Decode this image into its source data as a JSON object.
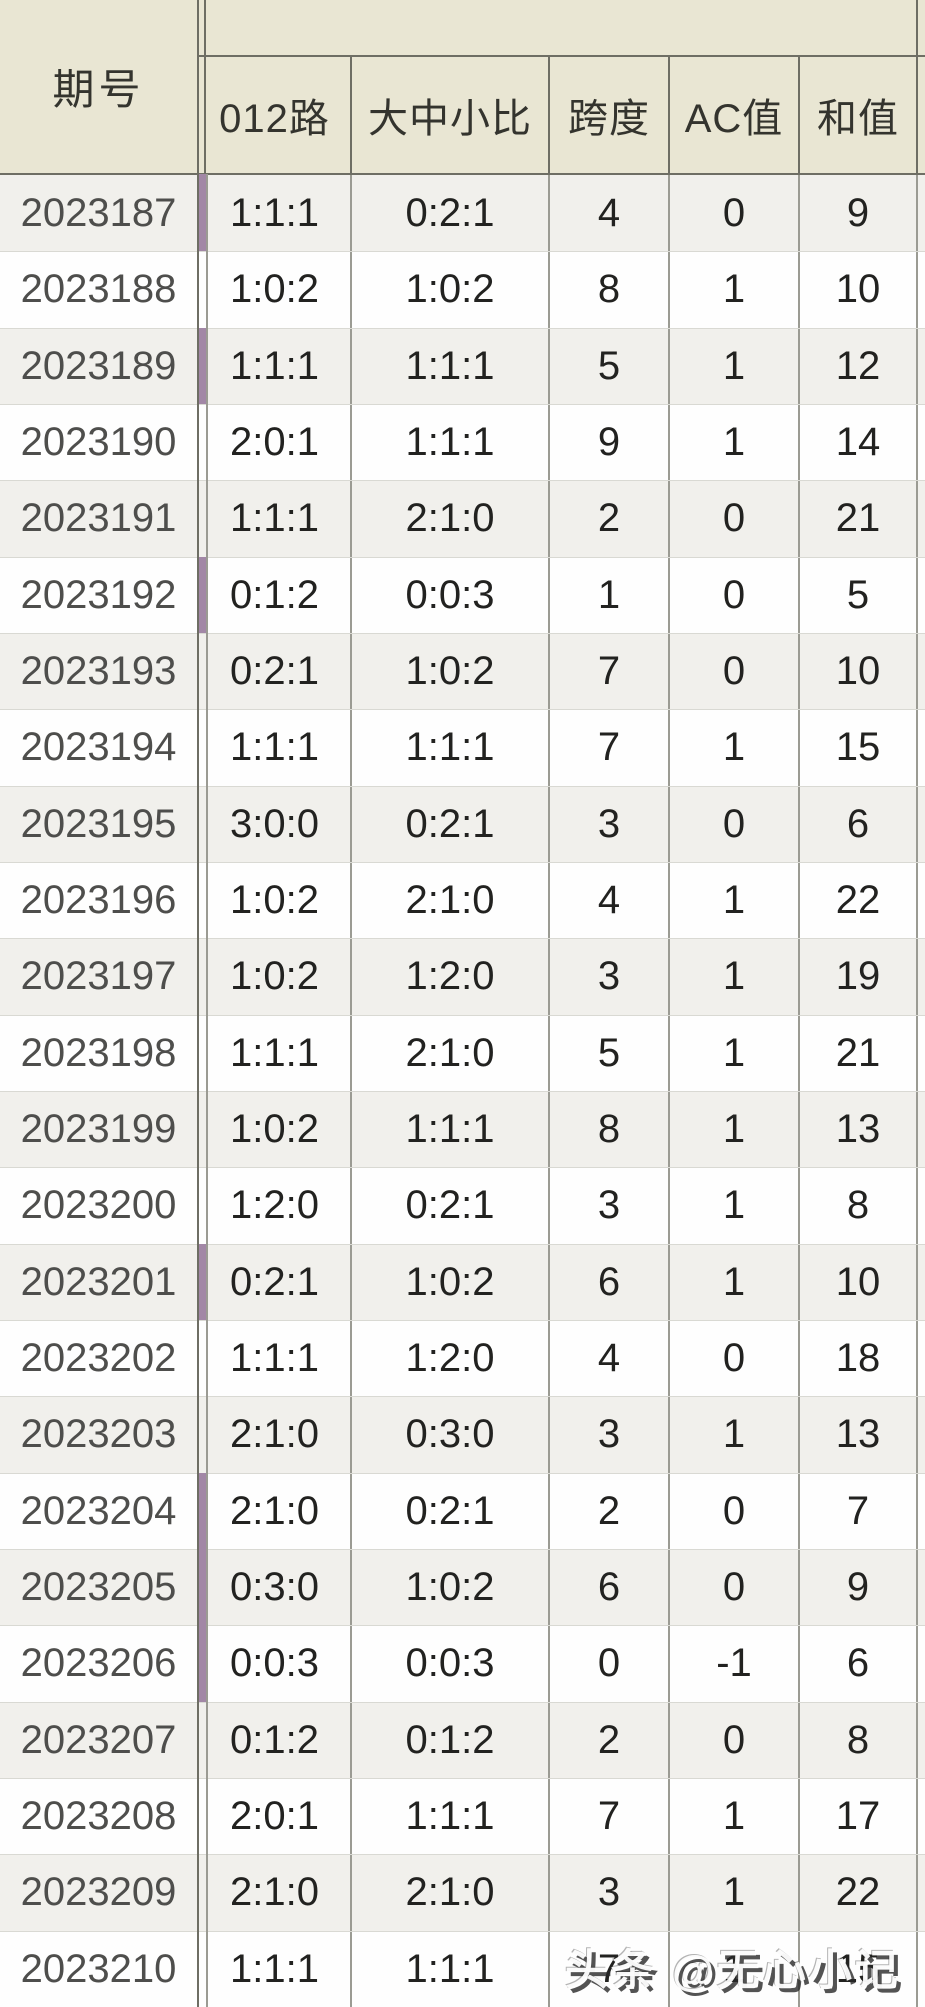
{
  "table": {
    "period_label": "期号",
    "columns": [
      "012路",
      "大中小比",
      "跨度",
      "AC值",
      "和值"
    ],
    "rows": [
      {
        "period": "2023187",
        "road012": "1:1:1",
        "size_ratio": "0:2:1",
        "span": "4",
        "ac": "0",
        "sum": "9",
        "marked": true
      },
      {
        "period": "2023188",
        "road012": "1:0:2",
        "size_ratio": "1:0:2",
        "span": "8",
        "ac": "1",
        "sum": "10",
        "marked": false
      },
      {
        "period": "2023189",
        "road012": "1:1:1",
        "size_ratio": "1:1:1",
        "span": "5",
        "ac": "1",
        "sum": "12",
        "marked": true
      },
      {
        "period": "2023190",
        "road012": "2:0:1",
        "size_ratio": "1:1:1",
        "span": "9",
        "ac": "1",
        "sum": "14",
        "marked": false
      },
      {
        "period": "2023191",
        "road012": "1:1:1",
        "size_ratio": "2:1:0",
        "span": "2",
        "ac": "0",
        "sum": "21",
        "marked": false
      },
      {
        "period": "2023192",
        "road012": "0:1:2",
        "size_ratio": "0:0:3",
        "span": "1",
        "ac": "0",
        "sum": "5",
        "marked": true
      },
      {
        "period": "2023193",
        "road012": "0:2:1",
        "size_ratio": "1:0:2",
        "span": "7",
        "ac": "0",
        "sum": "10",
        "marked": false
      },
      {
        "period": "2023194",
        "road012": "1:1:1",
        "size_ratio": "1:1:1",
        "span": "7",
        "ac": "1",
        "sum": "15",
        "marked": false
      },
      {
        "period": "2023195",
        "road012": "3:0:0",
        "size_ratio": "0:2:1",
        "span": "3",
        "ac": "0",
        "sum": "6",
        "marked": false
      },
      {
        "period": "2023196",
        "road012": "1:0:2",
        "size_ratio": "2:1:0",
        "span": "4",
        "ac": "1",
        "sum": "22",
        "marked": false
      },
      {
        "period": "2023197",
        "road012": "1:0:2",
        "size_ratio": "1:2:0",
        "span": "3",
        "ac": "1",
        "sum": "19",
        "marked": false
      },
      {
        "period": "2023198",
        "road012": "1:1:1",
        "size_ratio": "2:1:0",
        "span": "5",
        "ac": "1",
        "sum": "21",
        "marked": false
      },
      {
        "period": "2023199",
        "road012": "1:0:2",
        "size_ratio": "1:1:1",
        "span": "8",
        "ac": "1",
        "sum": "13",
        "marked": false
      },
      {
        "period": "2023200",
        "road012": "1:2:0",
        "size_ratio": "0:2:1",
        "span": "3",
        "ac": "1",
        "sum": "8",
        "marked": false
      },
      {
        "period": "2023201",
        "road012": "0:2:1",
        "size_ratio": "1:0:2",
        "span": "6",
        "ac": "1",
        "sum": "10",
        "marked": true
      },
      {
        "period": "2023202",
        "road012": "1:1:1",
        "size_ratio": "1:2:0",
        "span": "4",
        "ac": "0",
        "sum": "18",
        "marked": false
      },
      {
        "period": "2023203",
        "road012": "2:1:0",
        "size_ratio": "0:3:0",
        "span": "3",
        "ac": "1",
        "sum": "13",
        "marked": false
      },
      {
        "period": "2023204",
        "road012": "2:1:0",
        "size_ratio": "0:2:1",
        "span": "2",
        "ac": "0",
        "sum": "7",
        "marked": true
      },
      {
        "period": "2023205",
        "road012": "0:3:0",
        "size_ratio": "1:0:2",
        "span": "6",
        "ac": "0",
        "sum": "9",
        "marked": true
      },
      {
        "period": "2023206",
        "road012": "0:0:3",
        "size_ratio": "0:0:3",
        "span": "0",
        "ac": "-1",
        "sum": "6",
        "marked": true
      },
      {
        "period": "2023207",
        "road012": "0:1:2",
        "size_ratio": "0:1:2",
        "span": "2",
        "ac": "0",
        "sum": "8",
        "marked": false
      },
      {
        "period": "2023208",
        "road012": "2:0:1",
        "size_ratio": "1:1:1",
        "span": "7",
        "ac": "1",
        "sum": "17",
        "marked": false
      },
      {
        "period": "2023209",
        "road012": "2:1:0",
        "size_ratio": "2:1:0",
        "span": "3",
        "ac": "1",
        "sum": "22",
        "marked": false
      },
      {
        "period": "2023210",
        "road012": "1:1:1",
        "size_ratio": "1:1:1",
        "span": "7",
        "ac": "1",
        "sum": "15",
        "marked": false
      }
    ]
  },
  "watermark": {
    "text": "头条 @无心小记"
  },
  "colors": {
    "header_bg": "#e9e6d3",
    "row_alt_bg": "#f1f0ec",
    "row_bg": "#fefefe",
    "border_dark": "#6e6e64",
    "cell_border": "#9b9b93",
    "row_border": "#d9d9d3",
    "purple": "#a287a6",
    "header_text": "#34342e",
    "period_text": "#4e4e4c",
    "data_text": "#222220"
  }
}
